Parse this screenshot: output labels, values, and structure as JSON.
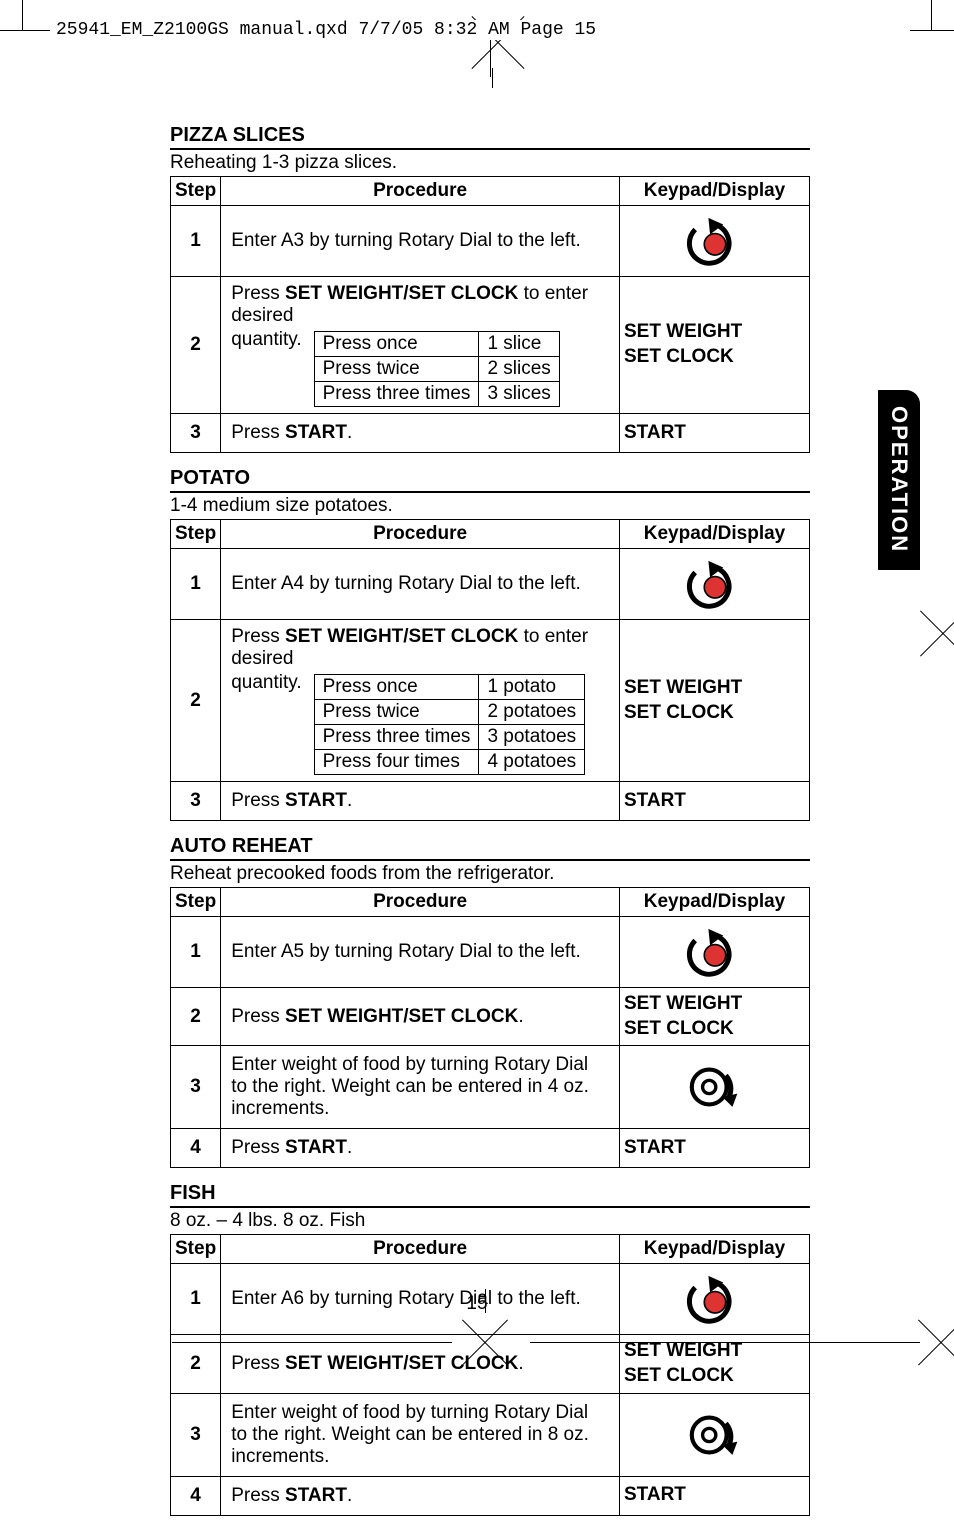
{
  "cropHeader": "25941_EM_Z2100GS manual.qxd  7/7/05  8:32 AM  Page 15",
  "sideTab": "OPERATION",
  "pageNumber": "15",
  "sections": [
    {
      "title": "PIZZA SLICES",
      "subtitle": "Reheating 1-3 pizza slices.",
      "headers": {
        "step": "Step",
        "procedure": "Procedure",
        "kd": "Keypad/Display"
      },
      "rows": [
        {
          "num": "1",
          "type": "dial",
          "text": "Enter A3 by turning Rotary Dial to the left."
        },
        {
          "num": "2",
          "type": "qty",
          "intro": [
            "Press ",
            " to enter desired"
          ],
          "introBold": "SET WEIGHT/SET CLOCK",
          "qtyLabel": "quantity.",
          "table": [
            [
              "Press once",
              "1 slice"
            ],
            [
              "Press twice",
              "2 slices"
            ],
            [
              "Press three times",
              "3 slices"
            ]
          ],
          "kd1": "SET WEIGHT",
          "kd2": "SET CLOCK"
        },
        {
          "num": "3",
          "type": "start",
          "prefix": "Press ",
          "bold": "START",
          "suffix": ".",
          "kd": "START"
        }
      ]
    },
    {
      "title": "POTATO",
      "subtitle": "1-4 medium size potatoes.",
      "headers": {
        "step": "Step",
        "procedure": "Procedure",
        "kd": "Keypad/Display"
      },
      "rows": [
        {
          "num": "1",
          "type": "dial",
          "text": "Enter A4 by turning Rotary Dial to the left."
        },
        {
          "num": "2",
          "type": "qty",
          "intro": [
            "Press ",
            " to enter desired"
          ],
          "introBold": "SET WEIGHT/SET CLOCK",
          "qtyLabel": "quantity.",
          "table": [
            [
              "Press once",
              "1 potato"
            ],
            [
              "Press twice",
              "2 potatoes"
            ],
            [
              "Press three times",
              "3 potatoes"
            ],
            [
              "Press four times",
              "4 potatoes"
            ]
          ],
          "kd1": "SET WEIGHT",
          "kd2": "SET CLOCK"
        },
        {
          "num": "3",
          "type": "start",
          "prefix": "Press ",
          "bold": "START",
          "suffix": ".",
          "kd": "START"
        }
      ]
    },
    {
      "title": "AUTO REHEAT",
      "subtitle": "Reheat precooked foods from the refrigerator.",
      "headers": {
        "step": "Step",
        "procedure": "Procedure",
        "kd": "Keypad/Display"
      },
      "rows": [
        {
          "num": "1",
          "type": "dial",
          "text": "Enter A5 by turning Rotary Dial to the left."
        },
        {
          "num": "2",
          "type": "simple",
          "prefix": "Press ",
          "bold": "SET WEIGHT/SET CLOCK",
          "suffix": ".",
          "kd1": "SET WEIGHT",
          "kd2": "SET CLOCK"
        },
        {
          "num": "3",
          "type": "rotary",
          "text": "Enter weight of food by turning Rotary Dial to the right. Weight can be entered in 4 oz. increments."
        },
        {
          "num": "4",
          "type": "start",
          "prefix": "Press ",
          "bold": "START",
          "suffix": ".",
          "kd": "START"
        }
      ]
    },
    {
      "title": "FISH",
      "subtitle": "8 oz. – 4 lbs. 8 oz. Fish",
      "headers": {
        "step": "Step",
        "procedure": "Procedure",
        "kd": "Keypad/Display"
      },
      "rows": [
        {
          "num": "1",
          "type": "dial",
          "text": "Enter A6 by turning Rotary Dial to the left."
        },
        {
          "num": "2",
          "type": "simple",
          "prefix": "Press ",
          "bold": "SET WEIGHT/SET CLOCK",
          "suffix": ".",
          "kd1": "SET WEIGHT",
          "kd2": "SET CLOCK"
        },
        {
          "num": "3",
          "type": "rotary",
          "text": "Enter weight of food by turning Rotary Dial to the right. Weight can be entered in 8 oz. increments."
        },
        {
          "num": "4",
          "type": "start",
          "prefix": "Press ",
          "bold": "START",
          "suffix": ".",
          "kd": "START"
        }
      ]
    }
  ]
}
